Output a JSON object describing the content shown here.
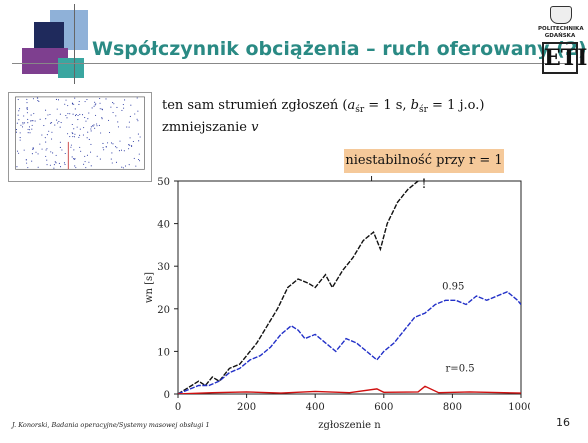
{
  "slide": {
    "title": "Współczynnik obciążenia – ruch oferowany (2)",
    "logo_line1": "POLITECHNIKA",
    "logo_line2": "GDAŃSKA",
    "logo_mark": "ETI",
    "desc_line1_prefix": "ten sam strumień zgłoszeń (",
    "desc_a": "a",
    "desc_a_sub": "śr",
    "desc_a_val": " = 1 s, ",
    "desc_b": "b",
    "desc_b_sub": "śr",
    "desc_b_val": " = 1 j.o.)",
    "desc_line2_prefix": "zmniejszanie ",
    "desc_line2_var": "v",
    "warning": "niestabilność przy r = 1 !",
    "footer": "J. Konorski, Badania operacyjne/Systemy masowej obsługi 1",
    "page_number": "16"
  },
  "colors": {
    "title": "#2a8a84",
    "warning_bg": "#f5c99a",
    "series_1": "#111111",
    "series_095": "#2230c8",
    "series_05": "#d01010"
  },
  "chart_data": {
    "type": "line",
    "xlabel": "zgłoszenie n",
    "ylabel": "wn [s]",
    "xlim": [
      0,
      1000
    ],
    "ylim": [
      0,
      50
    ],
    "xticks": [
      0,
      200,
      400,
      600,
      800,
      1000
    ],
    "yticks": [
      0,
      10,
      20,
      30,
      40,
      50
    ],
    "grid": false,
    "series": [
      {
        "name": "1",
        "color": "#111111",
        "points": [
          [
            0,
            0
          ],
          [
            20,
            1
          ],
          [
            40,
            2
          ],
          [
            60,
            3
          ],
          [
            80,
            2
          ],
          [
            100,
            4
          ],
          [
            120,
            3
          ],
          [
            150,
            6
          ],
          [
            180,
            7
          ],
          [
            200,
            9
          ],
          [
            230,
            12
          ],
          [
            260,
            16
          ],
          [
            290,
            20
          ],
          [
            320,
            25
          ],
          [
            350,
            27
          ],
          [
            380,
            26
          ],
          [
            400,
            25
          ],
          [
            430,
            28
          ],
          [
            450,
            25
          ],
          [
            480,
            29
          ],
          [
            510,
            32
          ],
          [
            540,
            36
          ],
          [
            570,
            38
          ],
          [
            590,
            34
          ],
          [
            610,
            40
          ],
          [
            640,
            45
          ],
          [
            670,
            48
          ],
          [
            700,
            50
          ],
          [
            720,
            53
          ],
          [
            740,
            55
          ]
        ]
      },
      {
        "name": "0.95",
        "color": "#2230c8",
        "points": [
          [
            0,
            0
          ],
          [
            30,
            1
          ],
          [
            60,
            2
          ],
          [
            90,
            2
          ],
          [
            120,
            3
          ],
          [
            150,
            5
          ],
          [
            180,
            6
          ],
          [
            210,
            8
          ],
          [
            240,
            9
          ],
          [
            270,
            11
          ],
          [
            300,
            14
          ],
          [
            330,
            16
          ],
          [
            350,
            15
          ],
          [
            370,
            13
          ],
          [
            400,
            14
          ],
          [
            430,
            12
          ],
          [
            460,
            10
          ],
          [
            490,
            13
          ],
          [
            520,
            12
          ],
          [
            550,
            10
          ],
          [
            580,
            8
          ],
          [
            600,
            10
          ],
          [
            630,
            12
          ],
          [
            660,
            15
          ],
          [
            690,
            18
          ],
          [
            720,
            19
          ],
          [
            750,
            21
          ],
          [
            780,
            22
          ],
          [
            810,
            22
          ],
          [
            840,
            21
          ],
          [
            870,
            23
          ],
          [
            900,
            22
          ],
          [
            930,
            23
          ],
          [
            960,
            24
          ],
          [
            990,
            22
          ],
          [
            1000,
            21
          ]
        ]
      },
      {
        "name": "r=0.5",
        "color": "#d01010",
        "points": [
          [
            0,
            0
          ],
          [
            100,
            0.3
          ],
          [
            200,
            0.5
          ],
          [
            300,
            0.2
          ],
          [
            400,
            0.6
          ],
          [
            500,
            0.3
          ],
          [
            580,
            1.2
          ],
          [
            600,
            0.4
          ],
          [
            700,
            0.5
          ],
          [
            720,
            1.8
          ],
          [
            760,
            0.3
          ],
          [
            850,
            0.5
          ],
          [
            950,
            0.3
          ],
          [
            1000,
            0.2
          ]
        ]
      }
    ],
    "series_labels": [
      {
        "text": "1"
      },
      {
        "text": "0.95"
      },
      {
        "text": "r=0.5"
      }
    ]
  }
}
